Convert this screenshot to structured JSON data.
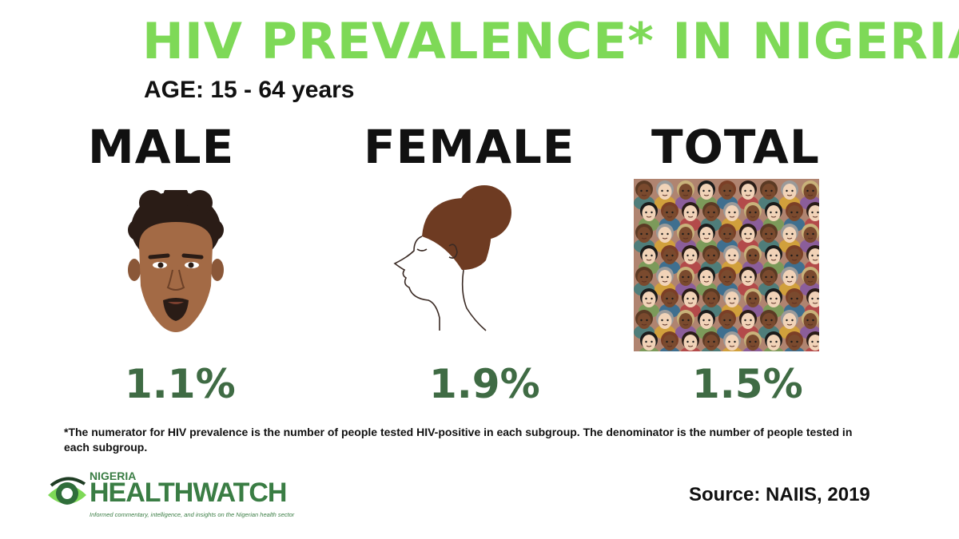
{
  "title": "HIV PREVALENCE* IN NIGERIA",
  "age": "AGE: 15 - 64 years",
  "groups": [
    {
      "label": "MALE",
      "value": "1.1%",
      "icon": "male-face-icon"
    },
    {
      "label": "FEMALE",
      "value": "1.9%",
      "icon": "female-profile-icon"
    },
    {
      "label": "TOTAL",
      "value": "1.5%",
      "icon": "crowd-faces-icon"
    }
  ],
  "footnote": "*The numerator for HIV prevalence is the number of people tested HIV-positive in each subgroup. The denominator is the number of people tested in each subgroup.",
  "source": "Source: NAIIS, 2019",
  "logo": {
    "top": "NIGERIA",
    "main": "HEALTHWATCH",
    "tagline": "Informed commentary, intelligence, and insights on the Nigerian health sector"
  },
  "colors": {
    "title": "#7ed957",
    "value": "#3f6b44",
    "brand": "#3a7d44"
  }
}
